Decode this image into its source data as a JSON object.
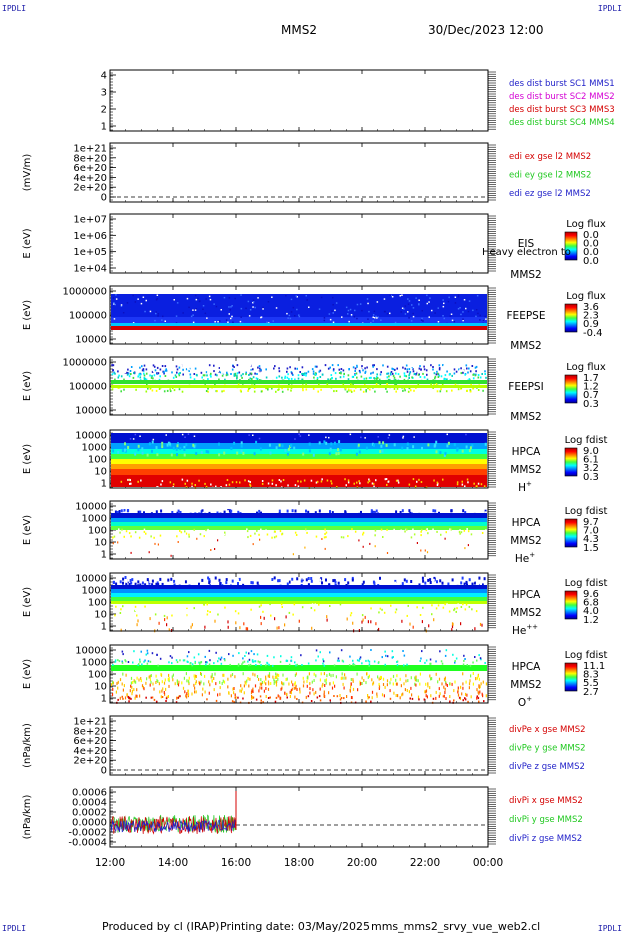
{
  "page": {
    "corner_label": "IPDLI",
    "spacecraft": "MMS2",
    "datetime": "30/Dec/2023 12:00",
    "footer": {
      "produced_by": "Produced by cl (IRAP)",
      "printing_date": "Printing date: 03/May/2025",
      "filename": "mms_mms2_srvy_vue_web2.cl"
    }
  },
  "colors": {
    "red": "#d40000",
    "magenta": "#d400d4",
    "green": "#1ec81e",
    "blue": "#1e1ec8"
  },
  "chart_data": [
    {
      "type": "line",
      "name": "des-dist-burst",
      "ylabel": "",
      "yticks": [
        "4",
        "3",
        "2",
        "1"
      ],
      "legend": [
        {
          "label": "des dist burst SC1 MMS1",
          "color": "#1e1ec8"
        },
        {
          "label": "des dist burst SC2 MMS2",
          "color": "#d400d4"
        },
        {
          "label": "des dist burst SC3 MMS3",
          "color": "#d40000"
        },
        {
          "label": "des dist burst SC4 MMS4",
          "color": "#1ec81e"
        }
      ]
    },
    {
      "type": "line",
      "name": "edi-e-gse",
      "ylabel": "(mV/m)",
      "yticks": [
        "1e+21",
        "8e+20",
        "6e+20",
        "4e+20",
        "2e+20",
        "0"
      ],
      "legend": [
        {
          "label": "edi ex gse l2 MMS2",
          "color": "#d40000"
        },
        {
          "label": "edi ey gse l2 MMS2",
          "color": "#1ec81e"
        },
        {
          "label": "edi ez gse l2 MMS2",
          "color": "#1e1ec8"
        }
      ]
    },
    {
      "type": "heatmap",
      "name": "eis",
      "ylabel": "E (eV)",
      "yticks": [
        "1e+07",
        "1e+06",
        "1e+05",
        "1e+04"
      ],
      "right_labels": [
        "EIS",
        "MMS2"
      ],
      "overlay_text": "Heavy electron to",
      "colorbar": {
        "title": "Log flux",
        "ticks": [
          "0.0",
          "0.0",
          "0.0",
          "0.0"
        ]
      }
    },
    {
      "type": "heatmap",
      "name": "feepse",
      "ylabel": "E (eV)",
      "yticks": [
        "1000000",
        "100000",
        "10000"
      ],
      "right_labels": [
        "FEEPSE",
        "MMS2"
      ],
      "colorbar": {
        "title": "Log flux",
        "ticks": [
          "3.6",
          "2.3",
          "0.9",
          "-0.4"
        ]
      }
    },
    {
      "type": "heatmap",
      "name": "feepsi",
      "ylabel": "E (eV)",
      "yticks": [
        "1000000",
        "100000",
        "10000"
      ],
      "right_labels": [
        "FEEPSI",
        "MMS2"
      ],
      "colorbar": {
        "title": "Log flux",
        "ticks": [
          "1.7",
          "1.2",
          "0.7",
          "0.3"
        ]
      }
    },
    {
      "type": "heatmap",
      "name": "hpca-h",
      "ylabel": "E (eV)",
      "yticks": [
        "10000",
        "1000",
        "100",
        "10",
        "1"
      ],
      "right_labels": [
        "HPCA",
        "MMS2"
      ],
      "species": {
        "base": "H",
        "sup": "+"
      },
      "colorbar": {
        "title": "Log fdist",
        "ticks": [
          "9.0",
          "6.1",
          "3.2",
          "0.3"
        ]
      }
    },
    {
      "type": "heatmap",
      "name": "hpca-he",
      "ylabel": "E (eV)",
      "yticks": [
        "10000",
        "1000",
        "100",
        "10",
        "1"
      ],
      "right_labels": [
        "HPCA",
        "MMS2"
      ],
      "species": {
        "base": "He",
        "sup": "+"
      },
      "colorbar": {
        "title": "Log fdist",
        "ticks": [
          "9.7",
          "7.0",
          "4.3",
          "1.5"
        ]
      }
    },
    {
      "type": "heatmap",
      "name": "hpca-he2",
      "ylabel": "E (eV)",
      "yticks": [
        "10000",
        "1000",
        "100",
        "10",
        "1"
      ],
      "right_labels": [
        "HPCA",
        "MMS2"
      ],
      "species": {
        "base": "He",
        "sup": "++"
      },
      "colorbar": {
        "title": "Log fdist",
        "ticks": [
          "9.6",
          "6.8",
          "4.0",
          "1.2"
        ]
      }
    },
    {
      "type": "heatmap",
      "name": "hpca-o",
      "ylabel": "E (eV)",
      "yticks": [
        "10000",
        "1000",
        "100",
        "10",
        "1"
      ],
      "right_labels": [
        "HPCA",
        "MMS2"
      ],
      "species": {
        "base": "O",
        "sup": "+"
      },
      "colorbar": {
        "title": "Log fdist",
        "ticks": [
          "11.1",
          "8.3",
          "5.5",
          "2.7"
        ]
      }
    },
    {
      "type": "line",
      "name": "divpe",
      "ylabel": "(nPa/km)",
      "yticks": [
        "1e+21",
        "8e+20",
        "6e+20",
        "4e+20",
        "2e+20",
        "0"
      ],
      "legend": [
        {
          "label": "divPe x gse MMS2",
          "color": "#d40000"
        },
        {
          "label": "divPe y gse MMS2",
          "color": "#1ec81e"
        },
        {
          "label": "divPe z gse MMS2",
          "color": "#1e1ec8"
        }
      ]
    },
    {
      "type": "line",
      "name": "divpi",
      "ylabel": "(nPa/km)",
      "yticks": [
        "0.0006",
        "0.0004",
        "0.0002",
        "0.0000",
        "-0.0002",
        "-0.0004"
      ],
      "legend": [
        {
          "label": "divPi x gse MMS2",
          "color": "#d40000"
        },
        {
          "label": "divPi y gse MMS2",
          "color": "#1ec81e"
        },
        {
          "label": "divPi z gse MMS2",
          "color": "#1e1ec8"
        }
      ],
      "data_extent": {
        "x_start": "12:00",
        "x_end": "16:00"
      }
    }
  ],
  "x_axis": {
    "ticks": [
      "12:00",
      "14:00",
      "16:00",
      "18:00",
      "20:00",
      "22:00",
      "00:00"
    ]
  }
}
